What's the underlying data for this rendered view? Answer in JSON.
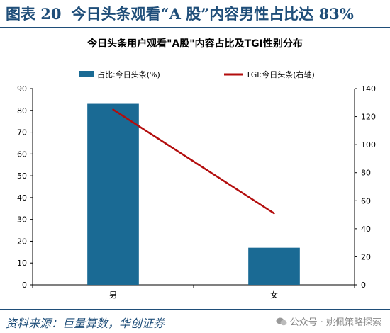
{
  "figure": {
    "number_label": "图表 20",
    "heading": "今日头条观看“A 股”内容男性占比达 83%"
  },
  "chart_data": {
    "type": "bar",
    "title": "今日头条用户观看\"A股\"内容占比及TGI性别分布",
    "categories": [
      "男",
      "女"
    ],
    "series": [
      {
        "name": "占比:今日头条(%)",
        "kind": "bar",
        "axis": "left",
        "values": [
          83,
          17
        ],
        "color": "#1a6a94"
      },
      {
        "name": "TGI:今日头条(右轴)",
        "kind": "line",
        "axis": "right",
        "values": [
          125,
          51
        ],
        "color": "#b30d0d"
      }
    ],
    "y_left": {
      "min": 0,
      "max": 90,
      "ticks": [
        0,
        10,
        20,
        30,
        40,
        50,
        60,
        70,
        80,
        90
      ]
    },
    "y_right": {
      "min": 0,
      "max": 140,
      "ticks": [
        0,
        20,
        40,
        60,
        80,
        100,
        120,
        140
      ]
    },
    "grid": false,
    "legend": "top"
  },
  "footer": {
    "source": "资料来源：巨量算数，华创证券",
    "watermark": "公众号 · 姚佩策略探索",
    "watermark_icon": "wechat-icon"
  }
}
